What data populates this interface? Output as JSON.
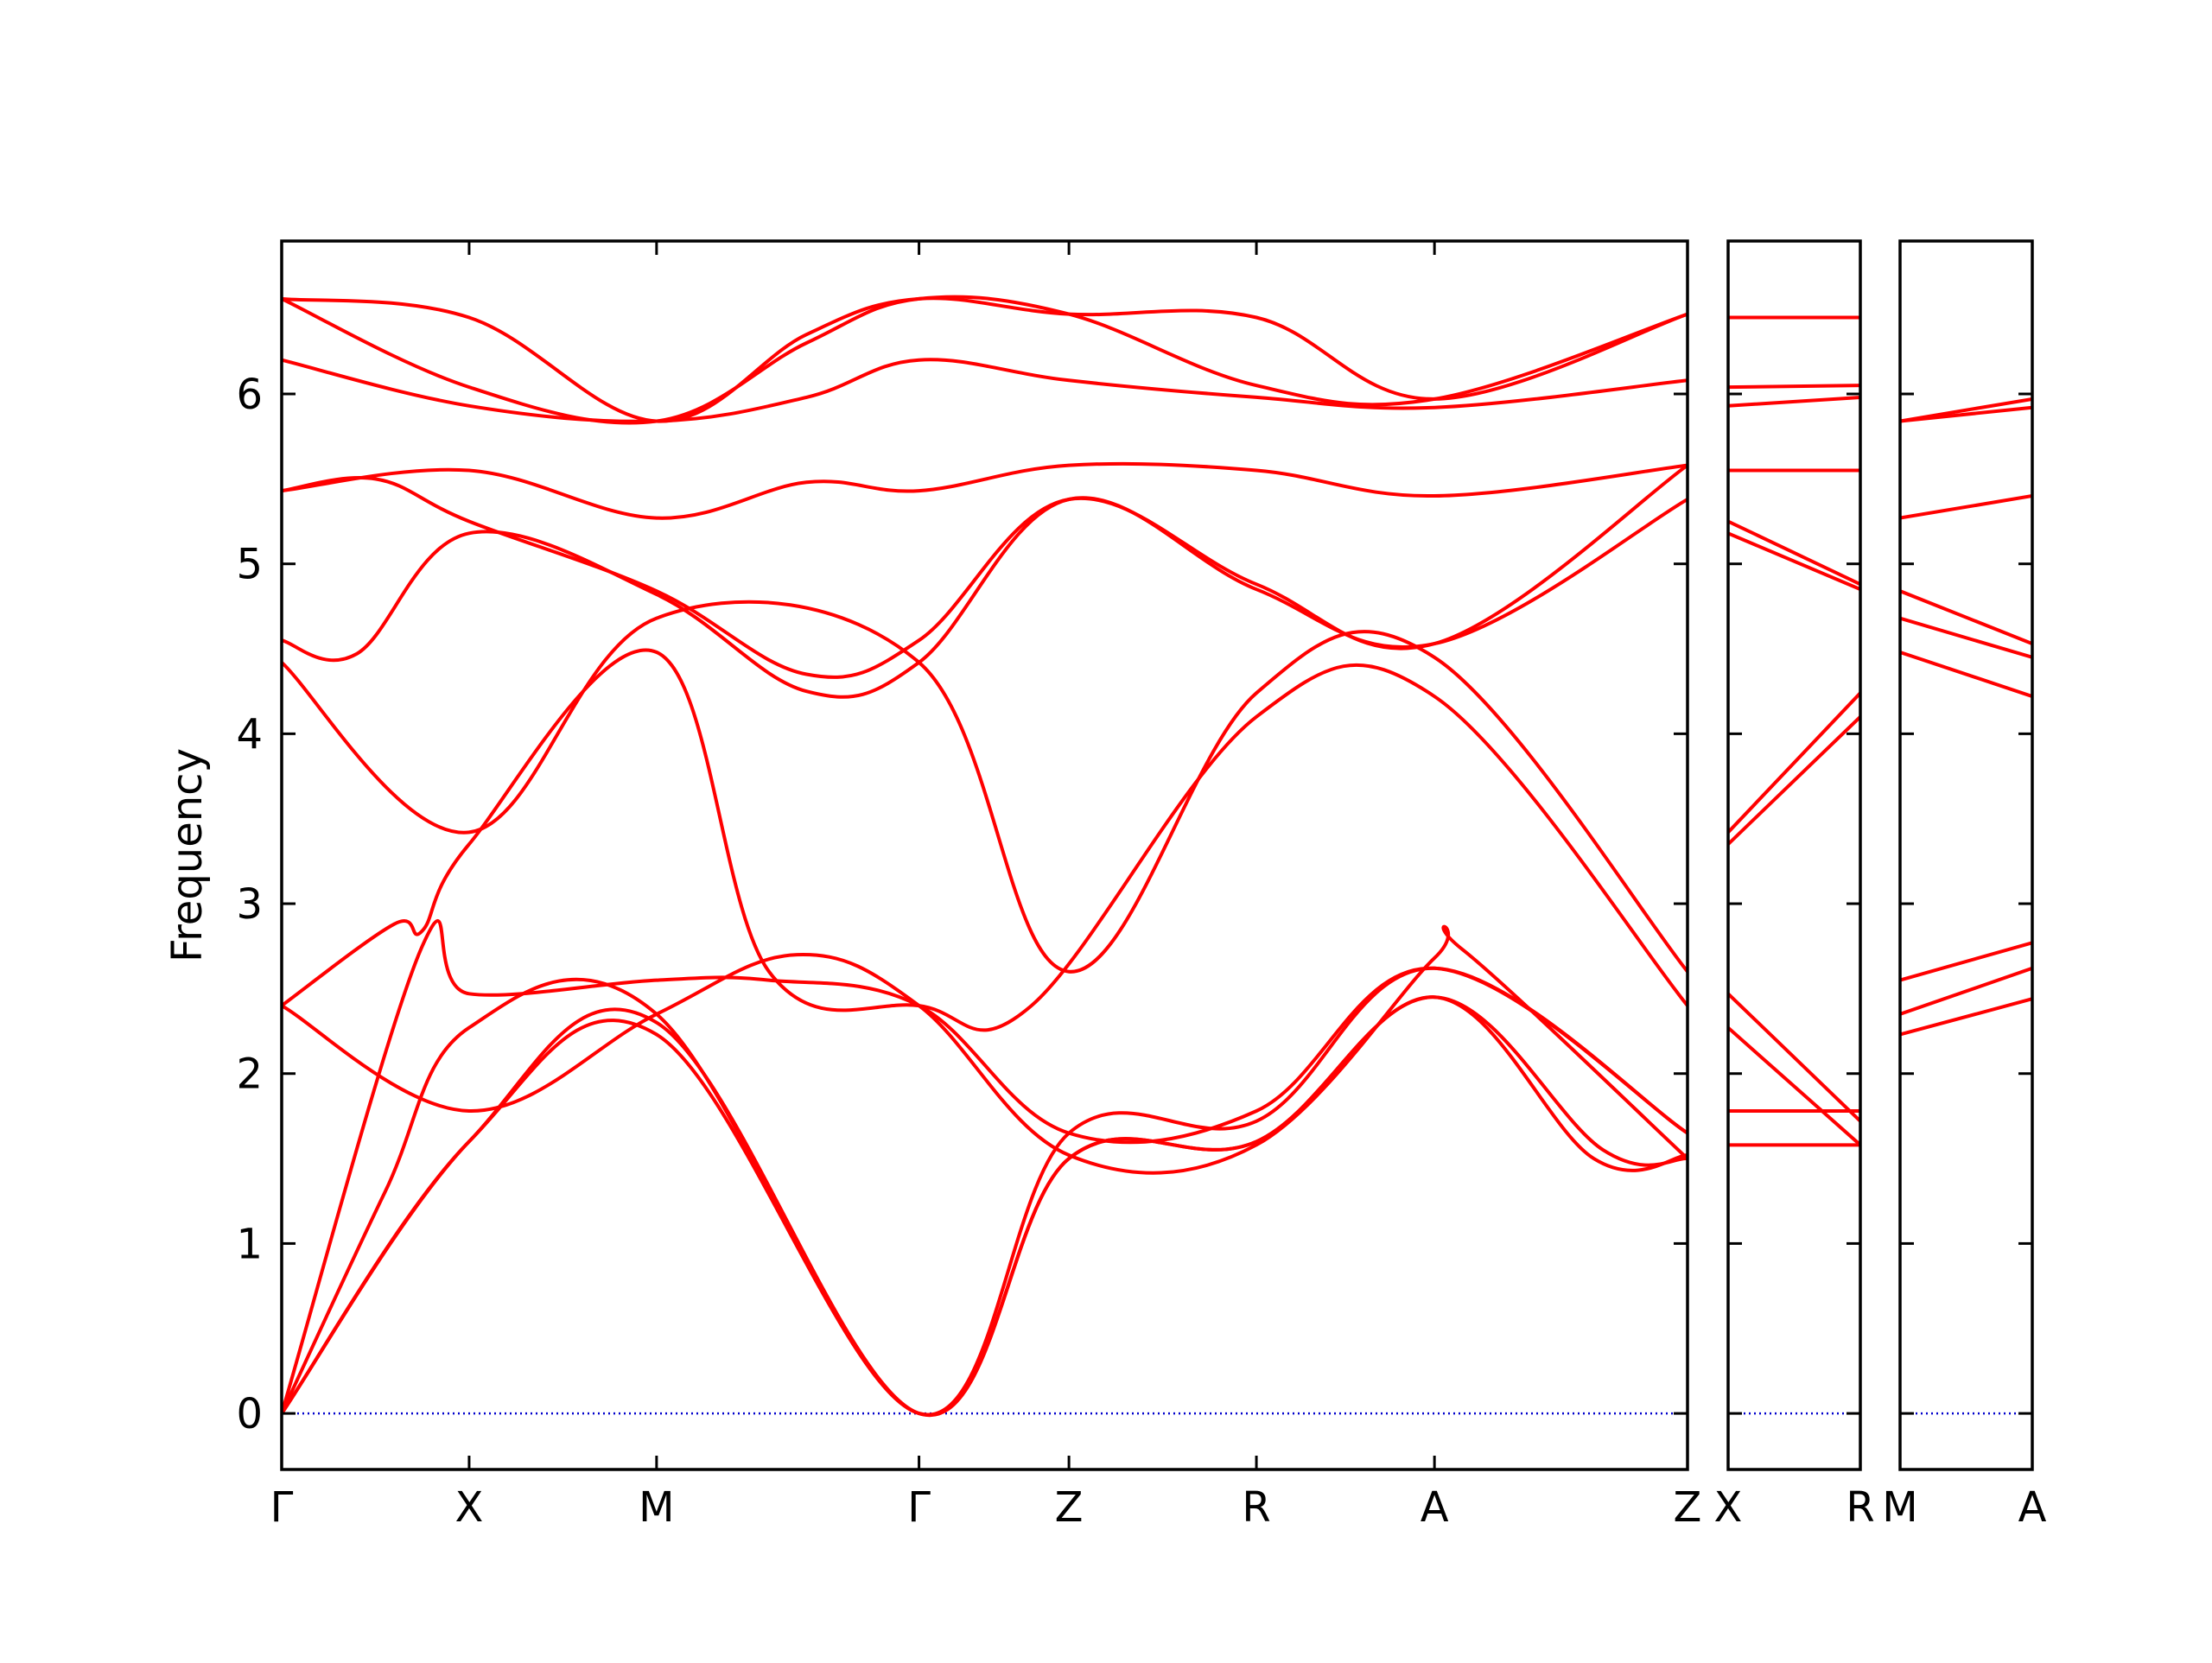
{
  "chart_data": {
    "type": "line",
    "title": "",
    "ylabel": "Frequency",
    "ylim": [
      -0.33,
      6.9
    ],
    "yticks": [
      0,
      1,
      2,
      3,
      4,
      5,
      6
    ],
    "grid": false,
    "legend": "none",
    "colors": {
      "bands": "#ff0000",
      "zero_line": "#0000cc",
      "frame": "#000000"
    },
    "panels": [
      {
        "id": "main",
        "xlabels": [
          "Γ",
          "X",
          "M",
          "Γ",
          "Z",
          "R",
          "A",
          "Z"
        ],
        "xlim": [
          0,
          7.5
        ],
        "bands": [
          [
            [
              0,
              0
            ],
            [
              1,
              1.6
            ],
            [
              2,
              2.23
            ],
            [
              3.4,
              0
            ],
            [
              4.2,
              1.5
            ],
            [
              5.2,
              1.6
            ],
            [
              6.15,
              2.45
            ],
            [
              7.05,
              1.55
            ],
            [
              7.5,
              1.5
            ]
          ],
          [
            [
              0,
              0
            ],
            [
              1,
              1.6
            ],
            [
              2,
              2.3
            ],
            [
              3.4,
              0
            ],
            [
              4.2,
              1.5
            ],
            [
              5.2,
              1.6
            ],
            [
              6.15,
              2.45
            ],
            [
              7.0,
              1.5
            ],
            [
              7.5,
              1.52
            ]
          ],
          [
            [
              0,
              0
            ],
            [
              0.55,
              1.3
            ],
            [
              1,
              2.27
            ],
            [
              2,
              2.35
            ],
            [
              3.4,
              0
            ],
            [
              4.2,
              1.65
            ],
            [
              5.2,
              1.72
            ],
            [
              6.15,
              2.62
            ],
            [
              7.5,
              1.65
            ]
          ],
          [
            [
              0,
              0
            ],
            [
              0.75,
              2.75
            ],
            [
              1,
              2.47
            ],
            [
              2,
              2.55
            ],
            [
              2.6,
              2.55
            ],
            [
              3.4,
              2.4
            ],
            [
              4.2,
              1.65
            ],
            [
              5.2,
              1.78
            ],
            [
              6.15,
              2.62
            ],
            [
              7.5,
              1.65
            ]
          ],
          [
            [
              0,
              2.4
            ],
            [
              1,
              1.78
            ],
            [
              2,
              2.35
            ],
            [
              2.75,
              2.7
            ],
            [
              3.4,
              2.4
            ],
            [
              4.2,
              1.52
            ],
            [
              5.2,
              1.58
            ],
            [
              6.15,
              2.68
            ],
            [
              6.3,
              2.73
            ],
            [
              7.5,
              1.5
            ]
          ],
          [
            [
              0,
              2.4
            ],
            [
              0.6,
              2.88
            ],
            [
              0.75,
              2.84
            ],
            [
              1,
              3.35
            ],
            [
              2,
              4.48
            ],
            [
              2.6,
              2.6
            ],
            [
              3.4,
              2.4
            ],
            [
              4.0,
              2.4
            ],
            [
              5.2,
              4.1
            ],
            [
              6.15,
              4.22
            ],
            [
              7.5,
              2.4
            ]
          ],
          [
            [
              0,
              4.42
            ],
            [
              1,
              3.42
            ],
            [
              2,
              4.68
            ],
            [
              3.4,
              4.42
            ],
            [
              4.2,
              2.6
            ],
            [
              5.2,
              4.24
            ],
            [
              6.15,
              4.45
            ],
            [
              7.5,
              2.6
            ]
          ],
          [
            [
              0,
              4.55
            ],
            [
              0.4,
              4.47
            ],
            [
              1,
              5.18
            ],
            [
              2,
              4.82
            ],
            [
              2.8,
              4.25
            ],
            [
              3.4,
              4.42
            ],
            [
              4.2,
              5.38
            ],
            [
              5.2,
              4.85
            ],
            [
              6.15,
              4.53
            ],
            [
              7.5,
              5.38
            ]
          ],
          [
            [
              0,
              5.43
            ],
            [
              0.5,
              5.5
            ],
            [
              1,
              5.25
            ],
            [
              2,
              4.84
            ],
            [
              2.8,
              4.35
            ],
            [
              3.4,
              4.55
            ],
            [
              4.2,
              5.38
            ],
            [
              5.2,
              4.88
            ],
            [
              6.15,
              4.53
            ],
            [
              7.5,
              5.58
            ]
          ],
          [
            [
              0,
              5.43
            ],
            [
              1,
              5.55
            ],
            [
              2,
              5.27
            ],
            [
              2.8,
              5.48
            ],
            [
              3.4,
              5.43
            ],
            [
              4.2,
              5.58
            ],
            [
              5.2,
              5.55
            ],
            [
              6.15,
              5.4
            ],
            [
              7.5,
              5.58
            ]
          ],
          [
            [
              0,
              6.2
            ],
            [
              1,
              5.93
            ],
            [
              2,
              5.84
            ],
            [
              2.8,
              5.98
            ],
            [
              3.4,
              6.2
            ],
            [
              4.2,
              6.08
            ],
            [
              5.2,
              5.98
            ],
            [
              6.15,
              5.92
            ],
            [
              7.5,
              6.08
            ]
          ],
          [
            [
              0,
              6.56
            ],
            [
              1,
              6.04
            ],
            [
              2,
              5.84
            ],
            [
              2.8,
              6.3
            ],
            [
              3.4,
              6.56
            ],
            [
              4.2,
              6.47
            ],
            [
              5.2,
              6.05
            ],
            [
              6.15,
              5.97
            ],
            [
              7.5,
              6.47
            ]
          ],
          [
            [
              0,
              6.56
            ],
            [
              1,
              6.45
            ],
            [
              2,
              5.84
            ],
            [
              2.8,
              6.35
            ],
            [
              3.4,
              6.56
            ],
            [
              4.2,
              6.47
            ],
            [
              5.2,
              6.45
            ],
            [
              6.15,
              5.97
            ],
            [
              7.5,
              6.47
            ]
          ]
        ]
      },
      {
        "id": "xr",
        "xlabels": [
          "X",
          "R"
        ],
        "xlim": [
          0,
          1
        ],
        "bands": [
          [
            [
              0,
              1.58
            ],
            [
              1,
              1.58
            ]
          ],
          [
            [
              0,
              1.78
            ],
            [
              1,
              1.78
            ]
          ],
          [
            [
              0,
              2.27
            ],
            [
              1,
              1.58
            ]
          ],
          [
            [
              0,
              2.47
            ],
            [
              1,
              1.72
            ]
          ],
          [
            [
              0,
              3.35
            ],
            [
              1,
              4.1
            ]
          ],
          [
            [
              0,
              3.42
            ],
            [
              1,
              4.24
            ]
          ],
          [
            [
              0,
              5.18
            ],
            [
              1,
              4.85
            ]
          ],
          [
            [
              0,
              5.25
            ],
            [
              1,
              4.88
            ]
          ],
          [
            [
              0,
              5.55
            ],
            [
              1,
              5.55
            ]
          ],
          [
            [
              0,
              5.93
            ],
            [
              1,
              5.98
            ]
          ],
          [
            [
              0,
              6.04
            ],
            [
              1,
              6.05
            ]
          ],
          [
            [
              0,
              6.45
            ],
            [
              1,
              6.45
            ]
          ]
        ]
      },
      {
        "id": "ma",
        "xlabels": [
          "M",
          "A"
        ],
        "xlim": [
          0,
          1
        ],
        "bands": [
          [
            [
              0,
              2.23
            ],
            [
              1,
              2.44
            ]
          ],
          [
            [
              0,
              2.35
            ],
            [
              1,
              2.62
            ]
          ],
          [
            [
              0,
              2.55
            ],
            [
              1,
              2.77
            ]
          ],
          [
            [
              0,
              4.48
            ],
            [
              1,
              4.22
            ]
          ],
          [
            [
              0,
              4.68
            ],
            [
              1,
              4.45
            ]
          ],
          [
            [
              0,
              4.84
            ],
            [
              1,
              4.53
            ]
          ],
          [
            [
              0,
              5.27
            ],
            [
              1,
              5.4
            ]
          ],
          [
            [
              0,
              5.84
            ],
            [
              1,
              5.92
            ]
          ],
          [
            [
              0,
              5.84
            ],
            [
              1,
              5.97
            ]
          ]
        ]
      }
    ]
  }
}
